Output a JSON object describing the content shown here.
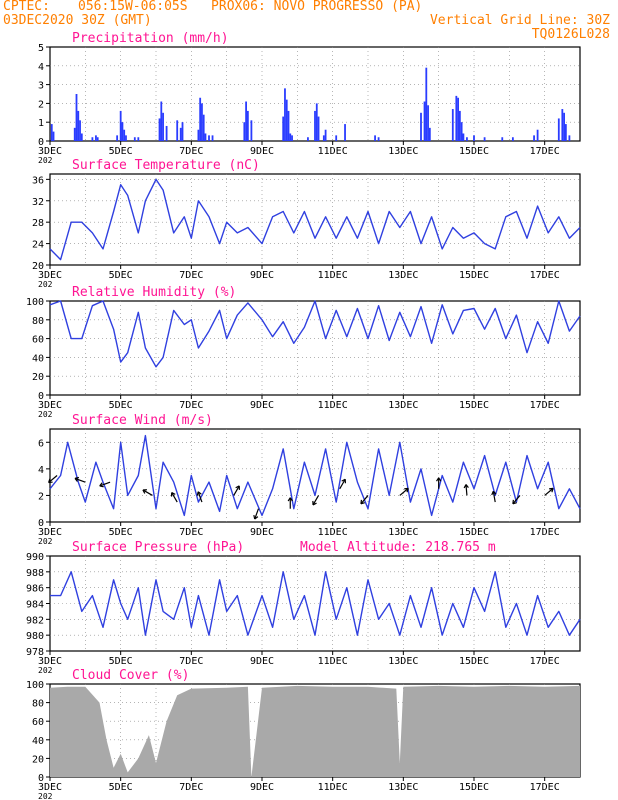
{
  "header": {
    "line1_left": "CPTEC:",
    "line1_right": "056:15W-06:05S   PROX06: NOVO PROGRESSO (PA)",
    "line2_left": "03DEC2020 30Z (GMT)",
    "line2_right": "Vertical Grid Line: 30Z",
    "line3_right": "TQ0126L028"
  },
  "colors": {
    "header": "#ff7f00",
    "title": "#ff1493",
    "line": "#3040e0",
    "bar": "#2a3cff",
    "cloud": "#a9a9a9",
    "axis": "#000000"
  },
  "x_axis": {
    "start_day": 3,
    "end_day": 18,
    "tick_labels": [
      "3DEC",
      "5DEC",
      "7DEC",
      "9DEC",
      "11DEC",
      "13DEC",
      "15DEC",
      "17DEC"
    ],
    "tick_days": [
      3,
      5,
      7,
      9,
      11,
      13,
      15,
      17
    ],
    "year_stub": "202"
  },
  "chart_data": [
    {
      "type": "bar",
      "title": "Precipitation (mm/h)",
      "ylim": [
        0,
        5
      ],
      "yticks": [
        0,
        1,
        2,
        3,
        4,
        5
      ],
      "x": [
        3.05,
        3.1,
        3.7,
        3.75,
        3.8,
        3.85,
        3.9,
        4.2,
        4.3,
        4.35,
        4.9,
        5.0,
        5.05,
        5.1,
        5.15,
        5.4,
        5.5,
        6.1,
        6.15,
        6.2,
        6.3,
        6.6,
        6.7,
        6.75,
        7.2,
        7.25,
        7.3,
        7.35,
        7.4,
        7.5,
        7.6,
        8.5,
        8.55,
        8.6,
        8.7,
        9.6,
        9.65,
        9.7,
        9.75,
        9.8,
        9.85,
        10.3,
        10.5,
        10.55,
        10.6,
        10.75,
        10.8,
        11.1,
        11.35,
        12.2,
        12.3,
        13.5,
        13.6,
        13.65,
        13.7,
        13.75,
        14.4,
        14.5,
        14.55,
        14.6,
        14.65,
        14.7,
        14.8,
        15.0,
        15.3,
        15.8,
        16.1,
        16.7,
        16.8,
        17.4,
        17.5,
        17.55,
        17.6,
        17.7
      ],
      "values": [
        0.9,
        0.5,
        0.7,
        2.5,
        1.6,
        1.1,
        0.4,
        0.2,
        0.3,
        0.2,
        0.3,
        1.6,
        1.0,
        0.6,
        0.3,
        0.2,
        0.2,
        1.2,
        2.1,
        1.5,
        0.8,
        1.1,
        0.7,
        1.0,
        0.6,
        2.3,
        2.0,
        1.4,
        0.4,
        0.3,
        0.3,
        1.0,
        2.1,
        1.6,
        1.1,
        1.3,
        2.8,
        2.2,
        1.6,
        0.4,
        0.3,
        0.2,
        1.6,
        2.0,
        1.3,
        0.3,
        0.6,
        0.3,
        0.9,
        0.3,
        0.2,
        1.5,
        2.1,
        3.9,
        1.9,
        0.7,
        1.7,
        2.4,
        2.3,
        1.6,
        1.0,
        0.4,
        0.2,
        0.3,
        0.2,
        0.2,
        0.2,
        0.3,
        0.6,
        1.2,
        1.7,
        1.5,
        0.9,
        0.3
      ]
    },
    {
      "type": "line",
      "title": "Surface Temperature (nC)",
      "ylim": [
        20,
        37
      ],
      "yticks": [
        20,
        24,
        28,
        32,
        36
      ],
      "x": [
        3.0,
        3.3,
        3.6,
        3.9,
        4.2,
        4.5,
        4.8,
        5.0,
        5.2,
        5.5,
        5.7,
        6.0,
        6.2,
        6.5,
        6.8,
        7.0,
        7.2,
        7.5,
        7.8,
        8.0,
        8.3,
        8.6,
        9.0,
        9.3,
        9.6,
        9.9,
        10.2,
        10.5,
        10.8,
        11.1,
        11.4,
        11.7,
        12.0,
        12.3,
        12.6,
        12.9,
        13.2,
        13.5,
        13.8,
        14.1,
        14.4,
        14.7,
        15.0,
        15.3,
        15.6,
        15.9,
        16.2,
        16.5,
        16.8,
        17.1,
        17.4,
        17.7,
        18.0
      ],
      "values": [
        23,
        21,
        28,
        28,
        26,
        23,
        30,
        35,
        33,
        26,
        32,
        36,
        34,
        26,
        29,
        25,
        32,
        29,
        24,
        28,
        26,
        27,
        24,
        29,
        30,
        26,
        30,
        25,
        29,
        25,
        29,
        25,
        30,
        24,
        30,
        27,
        30,
        24,
        29,
        23,
        27,
        25,
        26,
        24,
        23,
        29,
        30,
        25,
        31,
        26,
        29,
        25,
        27
      ]
    },
    {
      "type": "line",
      "title": "Relative Humidity (%)",
      "ylim": [
        0,
        100
      ],
      "yticks": [
        0,
        20,
        40,
        60,
        80,
        100
      ],
      "x": [
        3.0,
        3.3,
        3.6,
        3.9,
        4.2,
        4.5,
        4.8,
        5.0,
        5.2,
        5.5,
        5.7,
        6.0,
        6.2,
        6.5,
        6.8,
        7.0,
        7.2,
        7.5,
        7.8,
        8.0,
        8.3,
        8.6,
        9.0,
        9.3,
        9.6,
        9.9,
        10.2,
        10.5,
        10.8,
        11.1,
        11.4,
        11.7,
        12.0,
        12.3,
        12.6,
        12.9,
        13.2,
        13.5,
        13.8,
        14.1,
        14.4,
        14.7,
        15.0,
        15.3,
        15.6,
        15.9,
        16.2,
        16.5,
        16.8,
        17.1,
        17.4,
        17.7,
        18.0
      ],
      "values": [
        96,
        100,
        60,
        60,
        95,
        100,
        70,
        35,
        45,
        88,
        50,
        30,
        40,
        90,
        75,
        80,
        50,
        68,
        90,
        60,
        85,
        98,
        80,
        62,
        78,
        55,
        72,
        100,
        60,
        90,
        62,
        92,
        60,
        95,
        58,
        88,
        62,
        94,
        55,
        96,
        65,
        90,
        92,
        70,
        92,
        60,
        85,
        45,
        78,
        55,
        100,
        68,
        84
      ]
    },
    {
      "type": "line",
      "title": "Surface Wind (m/s)",
      "ylim": [
        0,
        7
      ],
      "yticks": [
        0,
        2,
        4,
        6
      ],
      "x": [
        3.0,
        3.3,
        3.5,
        3.8,
        4.0,
        4.3,
        4.5,
        4.8,
        5.0,
        5.2,
        5.5,
        5.7,
        6.0,
        6.2,
        6.5,
        6.8,
        7.0,
        7.2,
        7.5,
        7.8,
        8.0,
        8.3,
        8.6,
        9.0,
        9.3,
        9.6,
        9.9,
        10.2,
        10.5,
        10.8,
        11.1,
        11.4,
        11.7,
        12.0,
        12.3,
        12.6,
        12.9,
        13.2,
        13.5,
        13.8,
        14.1,
        14.4,
        14.7,
        15.0,
        15.3,
        15.6,
        15.9,
        16.2,
        16.5,
        16.8,
        17.1,
        17.4,
        17.7,
        18.0
      ],
      "values": [
        2.5,
        3.5,
        6.0,
        3.0,
        1.5,
        4.5,
        3.0,
        1.0,
        6.0,
        2.0,
        3.5,
        6.5,
        1.0,
        4.5,
        3.0,
        0.5,
        3.5,
        1.5,
        3.0,
        0.8,
        3.5,
        1.0,
        3.0,
        0.5,
        2.5,
        5.5,
        1.0,
        4.5,
        2.0,
        5.5,
        1.5,
        6.0,
        3.0,
        1.0,
        5.5,
        2.0,
        6.0,
        1.5,
        4.0,
        0.5,
        3.5,
        1.5,
        4.5,
        2.5,
        5.0,
        2.0,
        4.5,
        1.5,
        5.0,
        2.5,
        4.5,
        1.0,
        2.5,
        1.0
      ],
      "arrows": [
        {
          "day": 3.2,
          "dir_deg": 220,
          "speed": 3.5
        },
        {
          "day": 4.0,
          "dir_deg": 160,
          "speed": 3.0
        },
        {
          "day": 4.7,
          "dir_deg": 200,
          "speed": 3.0
        },
        {
          "day": 5.9,
          "dir_deg": 150,
          "speed": 2.0
        },
        {
          "day": 6.6,
          "dir_deg": 120,
          "speed": 1.5
        },
        {
          "day": 7.3,
          "dir_deg": 110,
          "speed": 1.5
        },
        {
          "day": 8.2,
          "dir_deg": 60,
          "speed": 2.0
        },
        {
          "day": 8.9,
          "dir_deg": 250,
          "speed": 1.0
        },
        {
          "day": 9.8,
          "dir_deg": 90,
          "speed": 1.0
        },
        {
          "day": 10.6,
          "dir_deg": 240,
          "speed": 2.0
        },
        {
          "day": 11.2,
          "dir_deg": 60,
          "speed": 2.5
        },
        {
          "day": 12.0,
          "dir_deg": 230,
          "speed": 2.0
        },
        {
          "day": 12.9,
          "dir_deg": 40,
          "speed": 2.0
        },
        {
          "day": 14.0,
          "dir_deg": 90,
          "speed": 2.5
        },
        {
          "day": 14.8,
          "dir_deg": 95,
          "speed": 2.0
        },
        {
          "day": 15.6,
          "dir_deg": 100,
          "speed": 1.5
        },
        {
          "day": 16.3,
          "dir_deg": 230,
          "speed": 2.0
        },
        {
          "day": 17.0,
          "dir_deg": 40,
          "speed": 2.0
        }
      ]
    },
    {
      "type": "line",
      "title": "Surface Pressure (hPa)",
      "annotation": "Model Altitude: 218.765 m",
      "ylim": [
        978,
        990
      ],
      "yticks": [
        978,
        980,
        982,
        984,
        986,
        988,
        990
      ],
      "x": [
        3.0,
        3.3,
        3.6,
        3.9,
        4.2,
        4.5,
        4.8,
        5.0,
        5.2,
        5.5,
        5.7,
        6.0,
        6.2,
        6.5,
        6.8,
        7.0,
        7.2,
        7.5,
        7.8,
        8.0,
        8.3,
        8.6,
        9.0,
        9.3,
        9.6,
        9.9,
        10.2,
        10.5,
        10.8,
        11.1,
        11.4,
        11.7,
        12.0,
        12.3,
        12.6,
        12.9,
        13.2,
        13.5,
        13.8,
        14.1,
        14.4,
        14.7,
        15.0,
        15.3,
        15.6,
        15.9,
        16.2,
        16.5,
        16.8,
        17.1,
        17.4,
        17.7,
        18.0
      ],
      "values": [
        985,
        985,
        988,
        983,
        985,
        981,
        987,
        984,
        982,
        986,
        980,
        987,
        983,
        982,
        986,
        981,
        985,
        980,
        987,
        983,
        985,
        980,
        985,
        981,
        988,
        982,
        985,
        980,
        988,
        982,
        986,
        980,
        987,
        982,
        984,
        980,
        985,
        981,
        986,
        980,
        984,
        981,
        986,
        983,
        988,
        981,
        984,
        980,
        985,
        981,
        983,
        980,
        982
      ]
    },
    {
      "type": "area",
      "title": "Cloud Cover (%)",
      "ylim": [
        0,
        100
      ],
      "yticks": [
        0,
        20,
        40,
        60,
        80,
        100
      ],
      "x": [
        3.0,
        3.5,
        4.0,
        4.4,
        4.6,
        4.8,
        5.0,
        5.2,
        5.5,
        5.8,
        6.0,
        6.3,
        6.6,
        7.0,
        8.0,
        8.6,
        8.7,
        9.0,
        10.0,
        11.0,
        12.0,
        12.8,
        12.9,
        13.0,
        14.0,
        15.0,
        16.0,
        17.0,
        18.0
      ],
      "values": [
        96,
        97,
        97,
        80,
        40,
        10,
        25,
        5,
        20,
        45,
        15,
        60,
        88,
        95,
        96,
        97,
        0,
        96,
        98,
        97,
        97,
        95,
        15,
        97,
        98,
        97,
        98,
        97,
        98
      ]
    }
  ]
}
